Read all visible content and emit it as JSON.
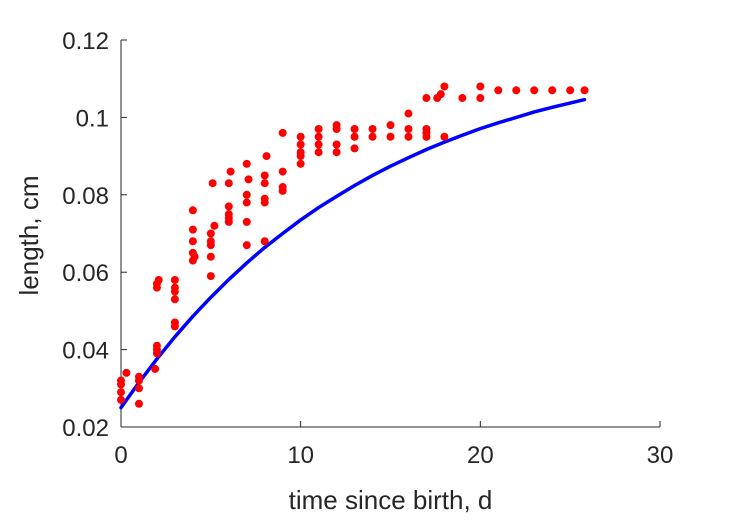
{
  "chart_data": {
    "type": "scatter",
    "xlabel": "time since birth, d",
    "ylabel": "length, cm",
    "xlim": [
      0,
      30
    ],
    "ylim": [
      0.02,
      0.12
    ],
    "xticks": [
      0,
      10,
      20,
      30
    ],
    "yticks": [
      0.02,
      0.04,
      0.06,
      0.08,
      0.1,
      0.12
    ],
    "xtick_labels": [
      "0",
      "10",
      "20",
      "30"
    ],
    "ytick_labels": [
      "0.02",
      "0.04",
      "0.06",
      "0.08",
      "0.1",
      "0.12"
    ],
    "grid": false,
    "marker_color": "#ff0000",
    "line_color": "#0000ff",
    "series": [
      {
        "type": "scatter",
        "x": [
          0,
          0,
          0,
          0,
          0.3,
          1,
          1,
          1,
          1,
          1.9,
          2,
          2,
          2,
          2,
          2,
          2.1,
          3,
          3,
          3,
          3,
          3,
          3,
          4,
          4,
          4,
          4,
          4,
          4.1,
          5,
          5,
          5,
          5,
          5,
          5.1,
          5.2,
          6,
          6,
          6,
          6,
          6,
          6.1,
          7,
          7,
          7,
          7,
          7,
          7.1,
          8,
          8,
          8,
          8,
          8,
          8.1,
          9,
          9,
          9,
          9,
          10,
          10,
          10,
          10,
          10,
          11,
          11,
          11,
          11,
          12,
          12,
          12,
          12,
          13,
          13,
          13,
          14,
          14,
          15,
          15,
          16,
          16,
          16,
          17,
          17,
          17,
          17,
          17.6,
          17.8,
          18,
          18,
          19,
          20,
          20,
          21,
          22,
          23,
          24,
          25,
          25.8
        ],
        "y": [
          0.027,
          0.029,
          0.031,
          0.032,
          0.034,
          0.026,
          0.03,
          0.032,
          0.033,
          0.035,
          0.039,
          0.04,
          0.041,
          0.056,
          0.057,
          0.058,
          0.046,
          0.047,
          0.053,
          0.055,
          0.056,
          0.058,
          0.063,
          0.065,
          0.068,
          0.071,
          0.076,
          0.064,
          0.059,
          0.064,
          0.067,
          0.068,
          0.07,
          0.083,
          0.072,
          0.073,
          0.074,
          0.075,
          0.077,
          0.083,
          0.086,
          0.067,
          0.073,
          0.078,
          0.08,
          0.088,
          0.084,
          0.068,
          0.078,
          0.079,
          0.083,
          0.085,
          0.09,
          0.081,
          0.082,
          0.086,
          0.096,
          0.088,
          0.09,
          0.091,
          0.093,
          0.095,
          0.091,
          0.093,
          0.095,
          0.097,
          0.091,
          0.093,
          0.097,
          0.098,
          0.092,
          0.095,
          0.097,
          0.095,
          0.097,
          0.095,
          0.098,
          0.095,
          0.097,
          0.101,
          0.095,
          0.096,
          0.097,
          0.105,
          0.105,
          0.106,
          0.108,
          0.095,
          0.105,
          0.105,
          0.108,
          0.107,
          0.107,
          0.107,
          0.107,
          0.107,
          0.107
        ]
      },
      {
        "type": "line",
        "x": [
          0,
          1,
          2,
          3,
          4,
          5,
          6,
          7,
          8,
          9,
          10,
          11,
          12,
          13,
          14,
          15,
          16,
          17,
          18,
          19,
          20,
          21,
          22,
          23,
          24,
          25,
          25.8
        ],
        "y": [
          0.025,
          0.0315,
          0.0376,
          0.0433,
          0.0486,
          0.0535,
          0.0581,
          0.0624,
          0.0664,
          0.07,
          0.0735,
          0.0767,
          0.0796,
          0.0824,
          0.085,
          0.0874,
          0.0896,
          0.0917,
          0.0936,
          0.0954,
          0.0971,
          0.0986,
          0.1,
          0.1014,
          0.1026,
          0.1037,
          0.1046
        ]
      }
    ]
  }
}
